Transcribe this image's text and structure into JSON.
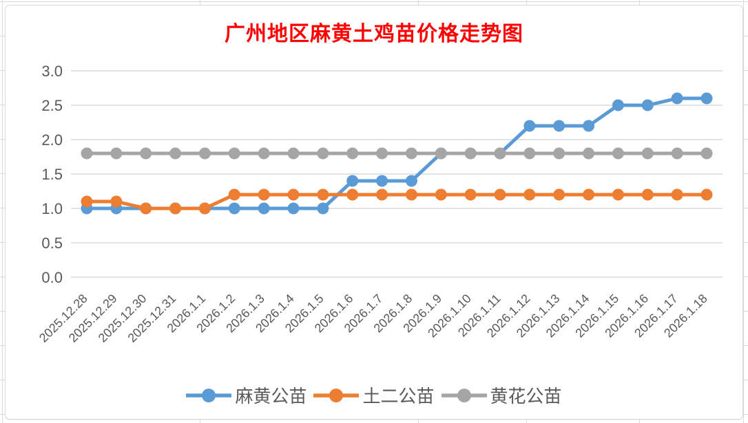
{
  "colors": {
    "title": "#FF0000",
    "axis_text": "#595959",
    "gridline": "#D9D9D9",
    "sheet_line": "#D9D9D9",
    "chart_background": "#FFFFFF"
  },
  "chart_data": {
    "type": "line",
    "title": "广州地区麻黄土鸡苗价格走势图",
    "categories": [
      "2025.12.28",
      "2025.12.29",
      "2025.12.30",
      "2025.12.31",
      "2026.1.1",
      "2026.1.2",
      "2026.1.3",
      "2026.1.4",
      "2026.1.5",
      "2026.1.6",
      "2026.1.7",
      "2026.1.8",
      "2026.1.9",
      "2026.1.10",
      "2026.1.11",
      "2026.1.12",
      "2026.1.13",
      "2026.1.14",
      "2026.1.15",
      "2026.1.16",
      "2026.1.17",
      "2026.1.18"
    ],
    "series": [
      {
        "name": "麻黄公苗",
        "color": "#5B9BD5",
        "values": [
          1.0,
          1.0,
          1.0,
          1.0,
          1.0,
          1.0,
          1.0,
          1.0,
          1.0,
          1.4,
          1.4,
          1.4,
          1.8,
          1.8,
          1.8,
          2.2,
          2.2,
          2.2,
          2.5,
          2.5,
          2.6,
          2.6
        ]
      },
      {
        "name": "土二公苗",
        "color": "#ED7D31",
        "values": [
          1.1,
          1.1,
          1.0,
          1.0,
          1.0,
          1.2,
          1.2,
          1.2,
          1.2,
          1.2,
          1.2,
          1.2,
          1.2,
          1.2,
          1.2,
          1.2,
          1.2,
          1.2,
          1.2,
          1.2,
          1.2,
          1.2
        ]
      },
      {
        "name": "黄花公苗",
        "color": "#A5A5A5",
        "values": [
          1.8,
          1.8,
          1.8,
          1.8,
          1.8,
          1.8,
          1.8,
          1.8,
          1.8,
          1.8,
          1.8,
          1.8,
          1.8,
          1.8,
          1.8,
          1.8,
          1.8,
          1.8,
          1.8,
          1.8,
          1.8,
          1.8
        ]
      }
    ],
    "xlabel": "",
    "ylabel": "",
    "ylim": [
      0.0,
      3.0
    ],
    "ytick_step": 0.5,
    "ytick_labels": [
      "0.0",
      "0.5",
      "1.0",
      "1.5",
      "2.0",
      "2.5",
      "3.0"
    ],
    "grid": true,
    "legend_position": "bottom",
    "x_label_rotation_deg": 45
  }
}
